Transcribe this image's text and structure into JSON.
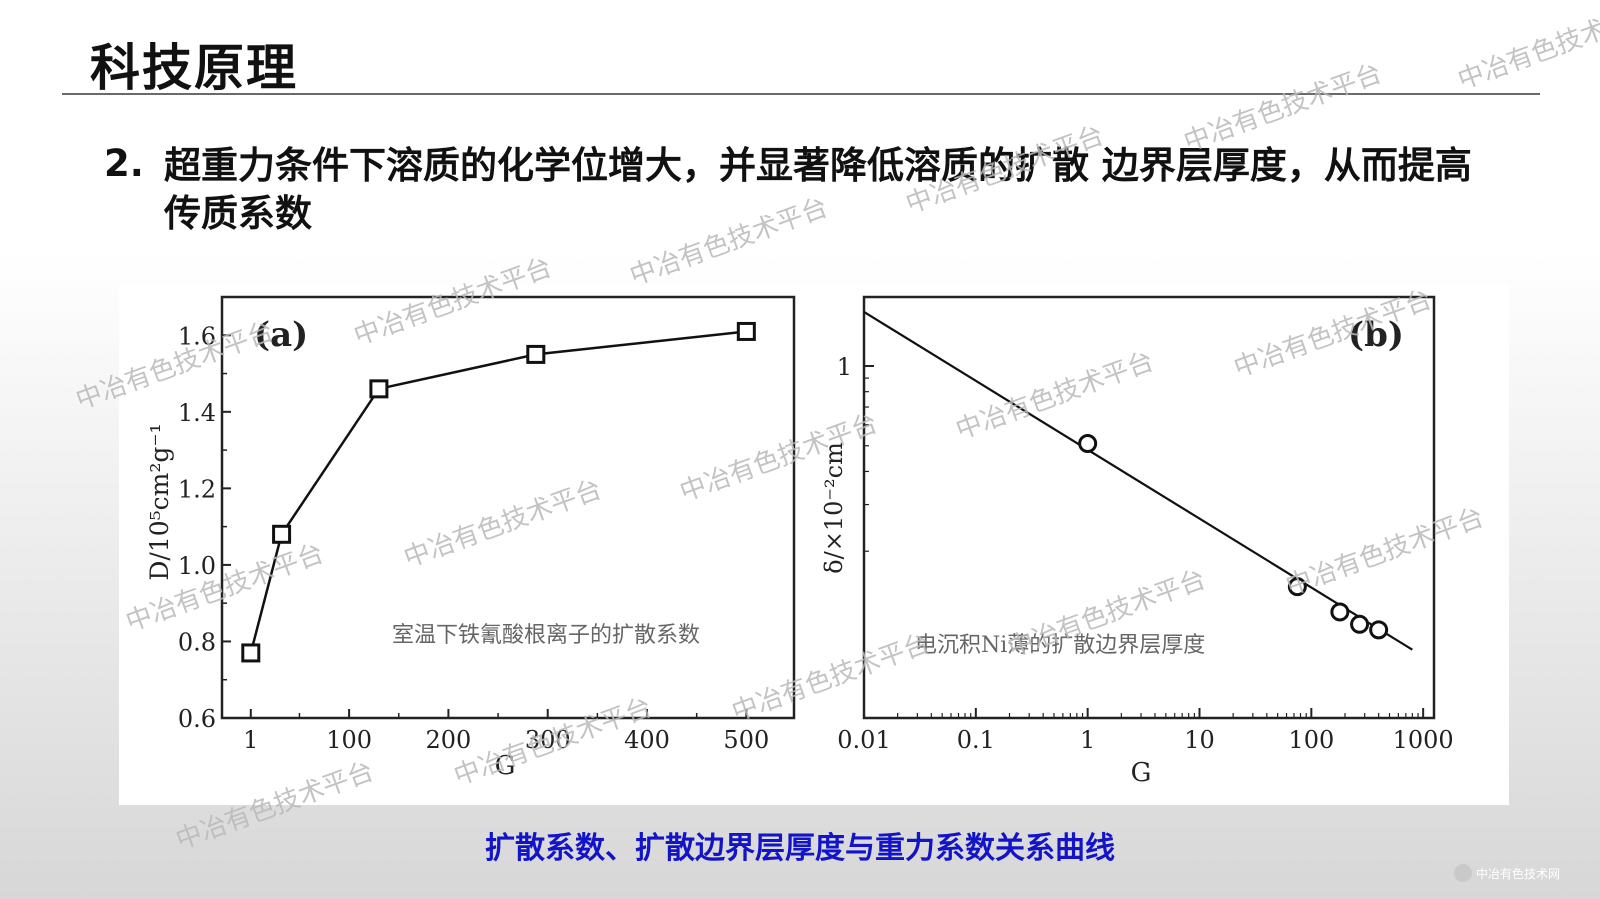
{
  "slide": {
    "title": "科技原理",
    "point_number": "2.",
    "point_text": "超重力条件下溶质的化学位增大，并显著降低溶质的扩散 边界层厚度，从而提高传质系数",
    "caption": "扩散系数、扩散边界层厚度与重力系数关系曲线",
    "logo_text": "中冶有色技术网"
  },
  "watermark": "中冶有色技术平台",
  "chart_data": [
    {
      "type": "line",
      "panel_label": "(a)",
      "annotation": "室温下铁氰酸根离子的扩散系数",
      "xlabel": "G",
      "ylabel": "D/10⁵cm²g⁻¹",
      "xticks": [
        "1",
        "100",
        "200",
        "300",
        "400",
        "500"
      ],
      "yticks": [
        "0.6",
        "0.8",
        "1.0",
        "1.2",
        "1.4",
        "1.6"
      ],
      "xlim": [
        -28,
        548
      ],
      "ylim": [
        0.6,
        1.7
      ],
      "series": [
        {
          "x": [
            1,
            32,
            130,
            288,
            500
          ],
          "y": [
            0.77,
            1.08,
            1.46,
            1.55,
            1.61
          ],
          "marker": "square"
        }
      ]
    },
    {
      "type": "scatter",
      "panel_label": "(b)",
      "annotation": "电沉积Ni薄的扩散边界层厚度",
      "xlabel": "G",
      "ylabel": "δ/×10⁻²cm",
      "xscale": "log",
      "yscale": "log",
      "xticks": [
        "0.01",
        "0.1",
        "1",
        "10",
        "100",
        "1000"
      ],
      "yticks": [
        "1"
      ],
      "xlim": [
        0.01,
        1250
      ],
      "series": [
        {
          "x": [
            1,
            75,
            180,
            270,
            400
          ],
          "y": [
            0.51,
            0.147,
            0.118,
            0.106,
            0.101
          ],
          "marker": "circle"
        }
      ],
      "fit_line": {
        "x": [
          0.01,
          800
        ],
        "y": [
          1.6,
          0.085
        ]
      }
    }
  ]
}
